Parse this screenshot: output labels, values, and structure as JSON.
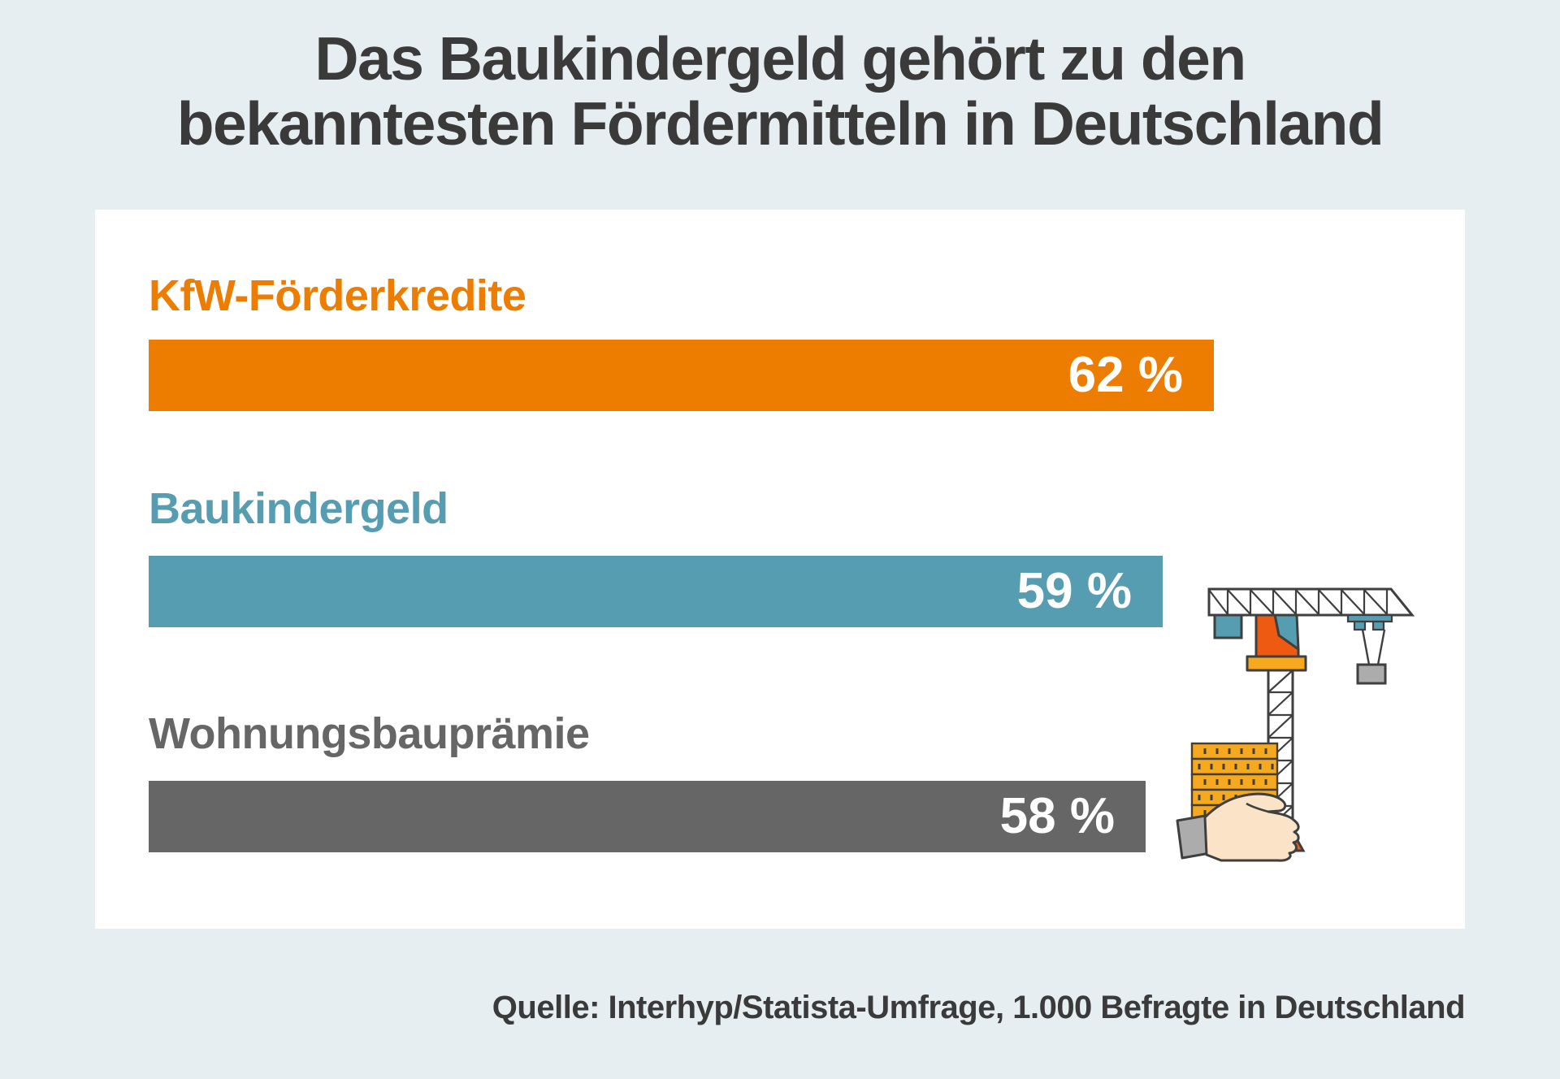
{
  "title": {
    "line1": "Das Baukindergeld gehört zu den",
    "line2": "bekanntesten Fördermitteln in Deutschland"
  },
  "source": "Quelle: Interhyp/Statista-Umfrage, 1.000 Befragte in Deutschland",
  "colors": {
    "background": "#E7EEF1",
    "panel": "#FFFFFF",
    "title_text": "#3A3A3A",
    "source_text": "#3A3A3A",
    "bar_value_text": "#FFFFFF",
    "accent_orange": "#EC7D00",
    "accent_teal": "#569DB1",
    "accent_gray": "#666666"
  },
  "chart_data": {
    "type": "bar",
    "orientation": "horizontal",
    "title": "Das Baukindergeld gehört zu den bekanntesten Fördermitteln in Deutschland",
    "categories": [
      "KfW-Förderkredite",
      "Baukindergeld",
      "Wohnungsbauprämie"
    ],
    "values": [
      62,
      59,
      58
    ],
    "unit": "%",
    "value_labels": [
      "62 %",
      "59 %",
      "58 %"
    ],
    "bar_colors": [
      "#EC7D00",
      "#569DB1",
      "#666666"
    ],
    "xlim": [
      0,
      62
    ],
    "grid": false,
    "legend": false,
    "value_label_position": "inside-right",
    "category_label_position": "above-bar",
    "source": "Quelle: Interhyp/Statista-Umfrage, 1.000 Befragte in Deutschland"
  },
  "illustration": {
    "name": "construction-crane-lifting, hand holding brick stack",
    "colors": {
      "outline": "#3F3F3F",
      "crane_orange": "#EF5A13",
      "amber": "#F6A81F",
      "teal": "#569DB1",
      "gray": "#ACACAC",
      "hand": "#FBE3C8",
      "white": "#FFFFFF"
    }
  }
}
